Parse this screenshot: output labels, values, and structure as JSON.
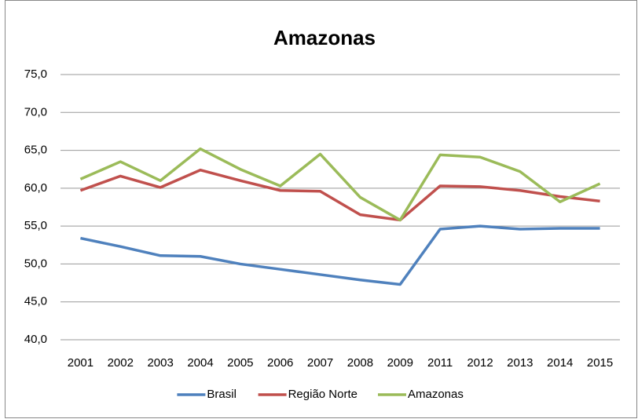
{
  "chart_data": {
    "type": "line",
    "title": "Amazonas",
    "categories": [
      "2001",
      "2002",
      "2003",
      "2004",
      "2005",
      "2006",
      "2007",
      "2008",
      "2009",
      "2011",
      "2012",
      "2013",
      "2014",
      "2015"
    ],
    "series": [
      {
        "name": "Brasil",
        "color": "#4f81bd",
        "values": [
          53.4,
          52.3,
          51.1,
          51.0,
          50.0,
          49.3,
          48.6,
          47.9,
          47.3,
          54.6,
          55.0,
          54.6,
          54.7,
          54.7
        ]
      },
      {
        "name": "Região Norte",
        "color": "#c0504d",
        "values": [
          59.7,
          61.6,
          60.1,
          62.4,
          61.0,
          59.7,
          59.6,
          56.5,
          55.8,
          60.3,
          60.2,
          59.7,
          58.9,
          58.3
        ]
      },
      {
        "name": "Amazonas",
        "color": "#9bbb59",
        "values": [
          61.2,
          63.5,
          61.0,
          65.2,
          62.5,
          60.3,
          64.5,
          58.8,
          55.8,
          64.4,
          64.1,
          62.2,
          58.2,
          60.6
        ]
      }
    ],
    "ylim": [
      40,
      75
    ],
    "yticks": [
      {
        "value": 40,
        "label": "40,0"
      },
      {
        "value": 45,
        "label": "45,0"
      },
      {
        "value": 50,
        "label": "50,0"
      },
      {
        "value": 55,
        "label": "55,0"
      },
      {
        "value": 60,
        "label": "60,0"
      },
      {
        "value": 65,
        "label": "65,0"
      },
      {
        "value": 70,
        "label": "70,0"
      },
      {
        "value": 75,
        "label": "75,0"
      }
    ],
    "grid": true,
    "legend": "bottom"
  }
}
